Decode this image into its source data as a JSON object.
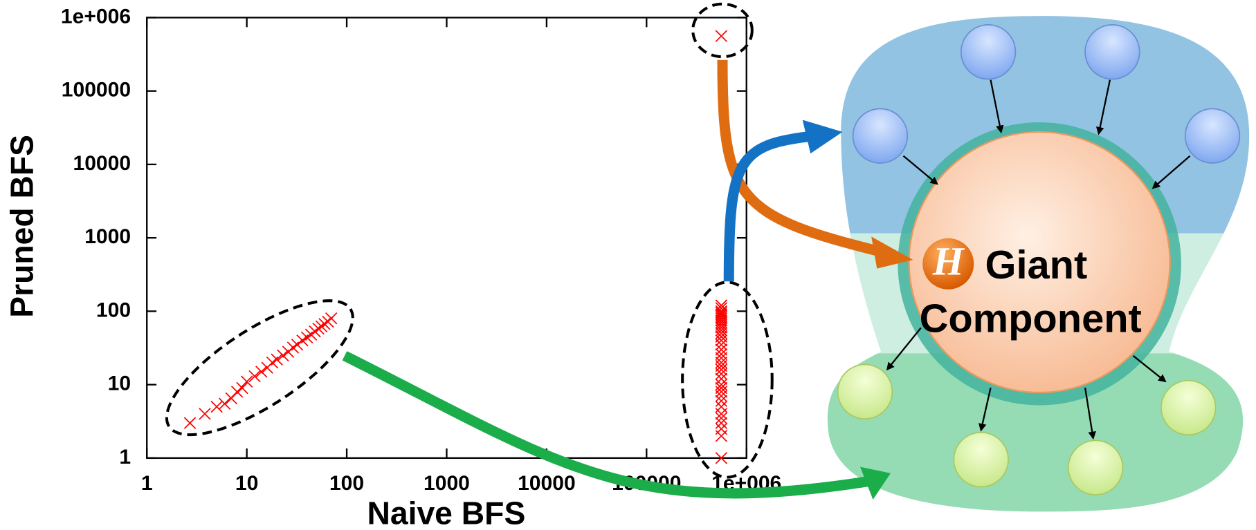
{
  "chart_data": {
    "type": "scatter",
    "xlabel": "Naive BFS",
    "ylabel": "Pruned BFS",
    "color": "#ff0000",
    "log_x": true,
    "log_y": true,
    "x": [
      2.7,
      3.8,
      5,
      6,
      7,
      8,
      9,
      10,
      12,
      14,
      16,
      18,
      20,
      23,
      26,
      29,
      32,
      36,
      40,
      44,
      48,
      52,
      56,
      60,
      65,
      70,
      560000,
      560000,
      560000,
      560000,
      560000,
      560000,
      560000,
      560000,
      560000,
      560000,
      560000,
      560000,
      560000,
      560000,
      560000,
      560000,
      560000,
      560000,
      560000,
      560000,
      560000,
      560000,
      560000,
      560000,
      560000,
      560000,
      560000,
      560000,
      560000,
      560000,
      560000,
      560000,
      560000,
      560000,
      560000,
      560000,
      560000
    ],
    "values": [
      3,
      4,
      5,
      5.5,
      6.5,
      8,
      9,
      11,
      13,
      15,
      17,
      20,
      22,
      25,
      28,
      32,
      35,
      40,
      44,
      48,
      53,
      58,
      62,
      67,
      72,
      80,
      1,
      2,
      2.5,
      3,
      3.5,
      4,
      5,
      6,
      7,
      8,
      9,
      10,
      12,
      14,
      16,
      18,
      20,
      23,
      26,
      30,
      35,
      40,
      45,
      50,
      55,
      60,
      65,
      70,
      75,
      80,
      85,
      90,
      95,
      100,
      110,
      120,
      560000
    ],
    "xlim": [
      1,
      1000000
    ],
    "ylim": [
      1,
      1000000
    ],
    "xticks": [
      1,
      10,
      100,
      1000,
      10000,
      100000,
      {
        "value": 1000000,
        "label": "1e+006"
      }
    ],
    "yticks": [
      1,
      10,
      100,
      1000,
      10000,
      100000,
      {
        "value": 1000000,
        "label": "1e+006"
      }
    ]
  },
  "diagram": {
    "hub_icon": "H",
    "hub_label": [
      "Giant",
      "Component"
    ]
  }
}
